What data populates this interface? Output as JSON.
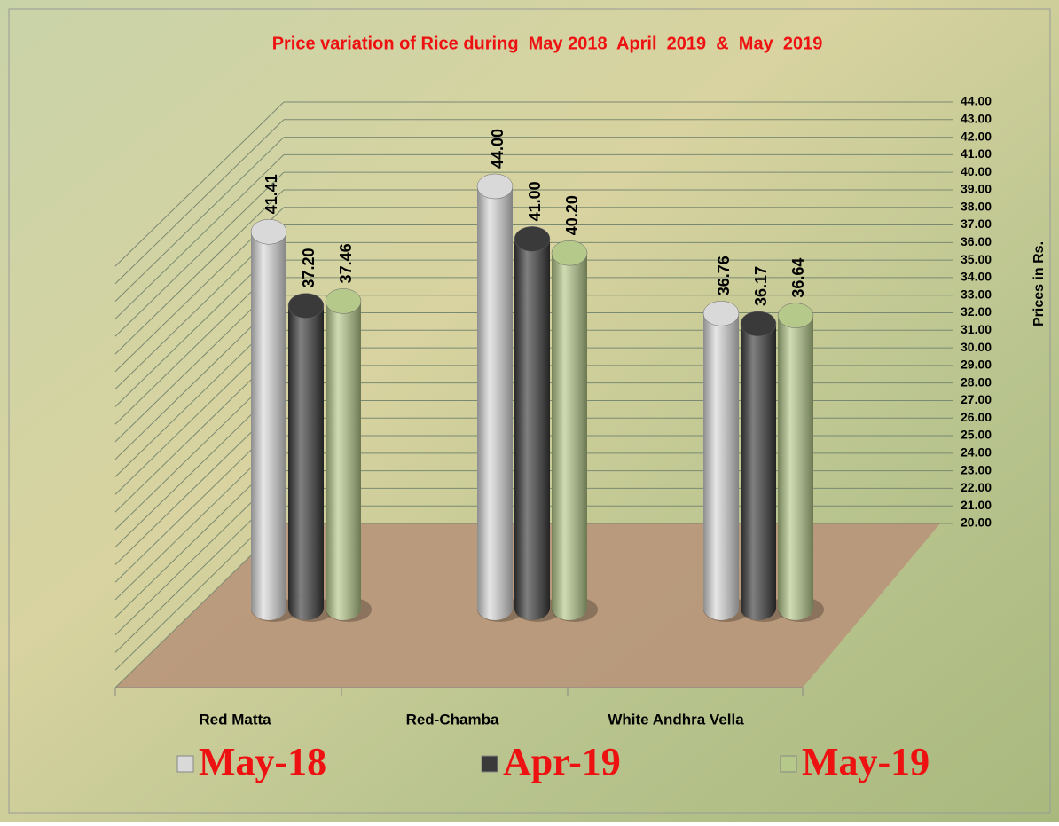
{
  "chart_data": {
    "type": "bar3d",
    "title": "Price variation of Rice during  May 2018  April  2019  &  May  2019",
    "y_axis_label": "Prices in Rs.",
    "categories": [
      "Red Matta",
      "Red-Chamba",
      "White Andhra Vella"
    ],
    "series": [
      {
        "name": "May-18",
        "color": "#d9d9d9",
        "values": [
          41.41,
          44.0,
          36.76
        ],
        "value_labels": [
          "41.41",
          "44.00",
          "36.76"
        ]
      },
      {
        "name": "Apr-19",
        "color": "#3a3a3a",
        "values": [
          37.2,
          41.0,
          36.17
        ],
        "value_labels": [
          "37.20",
          "41.00",
          "36.17"
        ]
      },
      {
        "name": "May-19",
        "color": "#b5c98a",
        "values": [
          37.46,
          40.2,
          36.64
        ],
        "value_labels": [
          "37.46",
          "40.20",
          "36.64"
        ]
      }
    ],
    "ylim": [
      20,
      44
    ],
    "yticks": [
      {
        "value": 20,
        "label": "20.00"
      },
      {
        "value": 21,
        "label": "21.00"
      },
      {
        "value": 22,
        "label": "22.00"
      },
      {
        "value": 23,
        "label": "23.00"
      },
      {
        "value": 24,
        "label": "24.00"
      },
      {
        "value": 25,
        "label": "25.00"
      },
      {
        "value": 26,
        "label": "26.00"
      },
      {
        "value": 27,
        "label": "27.00"
      },
      {
        "value": 28,
        "label": "28.00"
      },
      {
        "value": 29,
        "label": "29.00"
      },
      {
        "value": 30,
        "label": "30.00"
      },
      {
        "value": 31,
        "label": "31.00"
      },
      {
        "value": 32,
        "label": "32.00"
      },
      {
        "value": 33,
        "label": "33.00"
      },
      {
        "value": 34,
        "label": "34.00"
      },
      {
        "value": 35,
        "label": "35.00"
      },
      {
        "value": 36,
        "label": "36.00"
      },
      {
        "value": 37,
        "label": "37.00"
      },
      {
        "value": 38,
        "label": "38.00"
      },
      {
        "value": 39,
        "label": "39.00"
      },
      {
        "value": 40,
        "label": "40.00"
      },
      {
        "value": 41,
        "label": "41.00"
      },
      {
        "value": 42,
        "label": "42.00"
      },
      {
        "value": 43,
        "label": "43.00"
      },
      {
        "value": 44,
        "label": "44.00"
      }
    ],
    "grid": true,
    "legend": "bottom"
  }
}
